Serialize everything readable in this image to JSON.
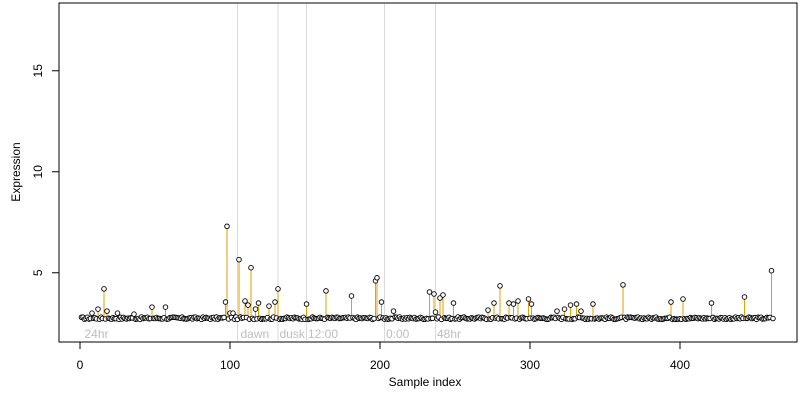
{
  "chart_data": {
    "type": "scatter",
    "xlabel": "Sample index",
    "ylabel": "Expression",
    "xlim": [
      -5,
      480
    ],
    "ylim": [
      1.8,
      18.5
    ],
    "xticks": [
      0,
      100,
      200,
      300,
      400
    ],
    "yticks": [
      5,
      10,
      15
    ],
    "baseline": 2.75,
    "n_points": 462,
    "colors": {
      "stem": "#e69f00",
      "point_stroke": "#000000",
      "point_fill": "#ffffff",
      "vline": "#d9d9d9",
      "segment_label": "#bdbdbd"
    },
    "segments": [
      {
        "label": "24hr",
        "x": 3
      },
      {
        "label": "dawn",
        "x": 107
      },
      {
        "label": "dusk",
        "x": 133
      },
      {
        "label": "12:00",
        "x": 152
      },
      {
        "label": "0:00",
        "x": 204
      },
      {
        "label": "48hr",
        "x": 238
      }
    ],
    "vlines": [
      105,
      132,
      151,
      203,
      237
    ],
    "peaks": [
      {
        "x": 8,
        "y": 3.0
      },
      {
        "x": 12,
        "y": 3.2
      },
      {
        "x": 16,
        "y": 4.2
      },
      {
        "x": 18,
        "y": 3.1
      },
      {
        "x": 25,
        "y": 3.0
      },
      {
        "x": 36,
        "y": 2.95
      },
      {
        "x": 48,
        "y": 3.3
      },
      {
        "x": 57,
        "y": 3.3
      },
      {
        "x": 97,
        "y": 3.55
      },
      {
        "x": 98,
        "y": 7.3
      },
      {
        "x": 100,
        "y": 3.0
      },
      {
        "x": 102,
        "y": 3.0
      },
      {
        "x": 106,
        "y": 5.65
      },
      {
        "x": 110,
        "y": 3.6
      },
      {
        "x": 112,
        "y": 3.4
      },
      {
        "x": 114,
        "y": 5.25
      },
      {
        "x": 117,
        "y": 3.2
      },
      {
        "x": 119,
        "y": 3.5
      },
      {
        "x": 126,
        "y": 3.35
      },
      {
        "x": 130,
        "y": 3.55
      },
      {
        "x": 132,
        "y": 4.2
      },
      {
        "x": 151,
        "y": 3.45
      },
      {
        "x": 164,
        "y": 4.1
      },
      {
        "x": 181,
        "y": 3.85
      },
      {
        "x": 197,
        "y": 4.6
      },
      {
        "x": 198,
        "y": 4.75
      },
      {
        "x": 201,
        "y": 3.55
      },
      {
        "x": 209,
        "y": 3.1
      },
      {
        "x": 233,
        "y": 4.05
      },
      {
        "x": 236,
        "y": 3.95
      },
      {
        "x": 237,
        "y": 3.05
      },
      {
        "x": 240,
        "y": 3.75
      },
      {
        "x": 242,
        "y": 3.9
      },
      {
        "x": 249,
        "y": 3.5
      },
      {
        "x": 272,
        "y": 3.15
      },
      {
        "x": 276,
        "y": 3.5
      },
      {
        "x": 280,
        "y": 4.35
      },
      {
        "x": 286,
        "y": 3.5
      },
      {
        "x": 289,
        "y": 3.45
      },
      {
        "x": 292,
        "y": 3.6
      },
      {
        "x": 299,
        "y": 3.7
      },
      {
        "x": 301,
        "y": 3.45
      },
      {
        "x": 318,
        "y": 3.1
      },
      {
        "x": 323,
        "y": 3.2
      },
      {
        "x": 327,
        "y": 3.4
      },
      {
        "x": 331,
        "y": 3.45
      },
      {
        "x": 334,
        "y": 3.1
      },
      {
        "x": 342,
        "y": 3.45
      },
      {
        "x": 362,
        "y": 4.4
      },
      {
        "x": 394,
        "y": 3.55
      },
      {
        "x": 402,
        "y": 3.7
      },
      {
        "x": 421,
        "y": 3.5
      },
      {
        "x": 443,
        "y": 3.8
      },
      {
        "x": 461,
        "y": 5.1
      }
    ]
  }
}
